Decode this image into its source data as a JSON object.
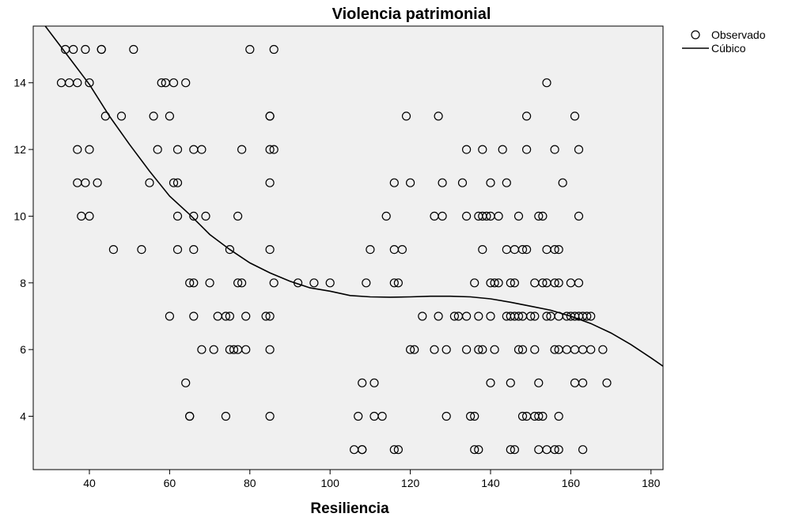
{
  "chart_data": {
    "type": "scatter",
    "title": "Violencia patrimonial",
    "xlabel": "Resiliencia",
    "ylabel": "",
    "xlim": [
      26,
      183
    ],
    "ylim": [
      2.4,
      15.7
    ],
    "xticks": [
      40,
      60,
      80,
      100,
      120,
      140,
      160,
      180
    ],
    "yticks": [
      4,
      6,
      8,
      10,
      12,
      14
    ],
    "plot_background": "#f0f0f0",
    "legend_position": "top-right",
    "legend": [
      "Observado",
      "Cúbico"
    ],
    "series": [
      {
        "name": "Observado",
        "kind": "scatter",
        "points": [
          [
            34,
            15
          ],
          [
            36,
            15
          ],
          [
            39,
            15
          ],
          [
            43,
            15
          ],
          [
            43,
            15
          ],
          [
            51,
            15
          ],
          [
            80,
            15
          ],
          [
            86,
            15
          ],
          [
            33,
            14
          ],
          [
            35,
            14
          ],
          [
            37,
            14
          ],
          [
            40,
            14
          ],
          [
            58,
            14
          ],
          [
            59,
            14
          ],
          [
            61,
            14
          ],
          [
            64,
            14
          ],
          [
            154,
            14
          ],
          [
            44,
            13
          ],
          [
            48,
            13
          ],
          [
            56,
            13
          ],
          [
            60,
            13
          ],
          [
            85,
            13
          ],
          [
            85,
            13
          ],
          [
            119,
            13
          ],
          [
            127,
            13
          ],
          [
            149,
            13
          ],
          [
            161,
            13
          ],
          [
            37,
            12
          ],
          [
            40,
            12
          ],
          [
            57,
            12
          ],
          [
            62,
            12
          ],
          [
            66,
            12
          ],
          [
            68,
            12
          ],
          [
            78,
            12
          ],
          [
            85,
            12
          ],
          [
            86,
            12
          ],
          [
            134,
            12
          ],
          [
            138,
            12
          ],
          [
            143,
            12
          ],
          [
            149,
            12
          ],
          [
            156,
            12
          ],
          [
            162,
            12
          ],
          [
            37,
            11
          ],
          [
            39,
            11
          ],
          [
            42,
            11
          ],
          [
            55,
            11
          ],
          [
            61,
            11
          ],
          [
            62,
            11
          ],
          [
            85,
            11
          ],
          [
            116,
            11
          ],
          [
            120,
            11
          ],
          [
            128,
            11
          ],
          [
            133,
            11
          ],
          [
            140,
            11
          ],
          [
            144,
            11
          ],
          [
            158,
            11
          ],
          [
            38,
            10
          ],
          [
            40,
            10
          ],
          [
            62,
            10
          ],
          [
            66,
            10
          ],
          [
            69,
            10
          ],
          [
            77,
            10
          ],
          [
            114,
            10
          ],
          [
            126,
            10
          ],
          [
            128,
            10
          ],
          [
            134,
            10
          ],
          [
            137,
            10
          ],
          [
            138,
            10
          ],
          [
            139,
            10
          ],
          [
            140,
            10
          ],
          [
            142,
            10
          ],
          [
            147,
            10
          ],
          [
            152,
            10
          ],
          [
            153,
            10
          ],
          [
            162,
            10
          ],
          [
            46,
            9
          ],
          [
            53,
            9
          ],
          [
            62,
            9
          ],
          [
            66,
            9
          ],
          [
            75,
            9
          ],
          [
            85,
            9
          ],
          [
            110,
            9
          ],
          [
            116,
            9
          ],
          [
            118,
            9
          ],
          [
            138,
            9
          ],
          [
            144,
            9
          ],
          [
            146,
            9
          ],
          [
            148,
            9
          ],
          [
            149,
            9
          ],
          [
            154,
            9
          ],
          [
            156,
            9
          ],
          [
            157,
            9
          ],
          [
            65,
            8
          ],
          [
            66,
            8
          ],
          [
            70,
            8
          ],
          [
            77,
            8
          ],
          [
            78,
            8
          ],
          [
            86,
            8
          ],
          [
            92,
            8
          ],
          [
            96,
            8
          ],
          [
            100,
            8
          ],
          [
            109,
            8
          ],
          [
            116,
            8
          ],
          [
            117,
            8
          ],
          [
            136,
            8
          ],
          [
            140,
            8
          ],
          [
            141,
            8
          ],
          [
            142,
            8
          ],
          [
            145,
            8
          ],
          [
            146,
            8
          ],
          [
            151,
            8
          ],
          [
            153,
            8
          ],
          [
            154,
            8
          ],
          [
            156,
            8
          ],
          [
            157,
            8
          ],
          [
            160,
            8
          ],
          [
            162,
            8
          ],
          [
            60,
            7
          ],
          [
            66,
            7
          ],
          [
            72,
            7
          ],
          [
            74,
            7
          ],
          [
            75,
            7
          ],
          [
            79,
            7
          ],
          [
            84,
            7
          ],
          [
            85,
            7
          ],
          [
            123,
            7
          ],
          [
            127,
            7
          ],
          [
            131,
            7
          ],
          [
            132,
            7
          ],
          [
            134,
            7
          ],
          [
            137,
            7
          ],
          [
            140,
            7
          ],
          [
            144,
            7
          ],
          [
            145,
            7
          ],
          [
            146,
            7
          ],
          [
            147,
            7
          ],
          [
            148,
            7
          ],
          [
            150,
            7
          ],
          [
            151,
            7
          ],
          [
            154,
            7
          ],
          [
            155,
            7
          ],
          [
            157,
            7
          ],
          [
            159,
            7
          ],
          [
            160,
            7
          ],
          [
            161,
            7
          ],
          [
            162,
            7
          ],
          [
            163,
            7
          ],
          [
            164,
            7
          ],
          [
            165,
            7
          ],
          [
            68,
            6
          ],
          [
            71,
            6
          ],
          [
            75,
            6
          ],
          [
            76,
            6
          ],
          [
            77,
            6
          ],
          [
            79,
            6
          ],
          [
            85,
            6
          ],
          [
            120,
            6
          ],
          [
            121,
            6
          ],
          [
            126,
            6
          ],
          [
            129,
            6
          ],
          [
            134,
            6
          ],
          [
            137,
            6
          ],
          [
            138,
            6
          ],
          [
            141,
            6
          ],
          [
            147,
            6
          ],
          [
            148,
            6
          ],
          [
            151,
            6
          ],
          [
            156,
            6
          ],
          [
            157,
            6
          ],
          [
            159,
            6
          ],
          [
            161,
            6
          ],
          [
            163,
            6
          ],
          [
            165,
            6
          ],
          [
            168,
            6
          ],
          [
            64,
            5
          ],
          [
            108,
            5
          ],
          [
            111,
            5
          ],
          [
            140,
            5
          ],
          [
            145,
            5
          ],
          [
            152,
            5
          ],
          [
            161,
            5
          ],
          [
            163,
            5
          ],
          [
            169,
            5
          ],
          [
            65,
            4
          ],
          [
            65,
            4
          ],
          [
            74,
            4
          ],
          [
            85,
            4
          ],
          [
            107,
            4
          ],
          [
            111,
            4
          ],
          [
            113,
            4
          ],
          [
            129,
            4
          ],
          [
            135,
            4
          ],
          [
            136,
            4
          ],
          [
            148,
            4
          ],
          [
            149,
            4
          ],
          [
            151,
            4
          ],
          [
            152,
            4
          ],
          [
            153,
            4
          ],
          [
            157,
            4
          ],
          [
            106,
            3
          ],
          [
            108,
            3
          ],
          [
            108,
            3
          ],
          [
            116,
            3
          ],
          [
            117,
            3
          ],
          [
            136,
            3
          ],
          [
            137,
            3
          ],
          [
            145,
            3
          ],
          [
            146,
            3
          ],
          [
            152,
            3
          ],
          [
            154,
            3
          ],
          [
            156,
            3
          ],
          [
            157,
            3
          ],
          [
            163,
            3
          ]
        ]
      },
      {
        "name": "Cúbico",
        "kind": "line",
        "x": [
          29,
          35,
          40,
          45,
          50,
          55,
          60,
          65,
          70,
          75,
          80,
          85,
          90,
          95,
          100,
          105,
          110,
          115,
          120,
          125,
          130,
          135,
          140,
          145,
          150,
          155,
          160,
          165,
          170,
          175,
          180,
          183
        ],
        "y": [
          15.7,
          14.75,
          13.95,
          13.0,
          12.15,
          11.35,
          10.6,
          10.05,
          9.45,
          9.0,
          8.6,
          8.3,
          8.05,
          7.85,
          7.75,
          7.62,
          7.58,
          7.57,
          7.58,
          7.6,
          7.6,
          7.58,
          7.52,
          7.42,
          7.3,
          7.18,
          7.0,
          6.78,
          6.5,
          6.15,
          5.75,
          5.5
        ]
      }
    ]
  }
}
